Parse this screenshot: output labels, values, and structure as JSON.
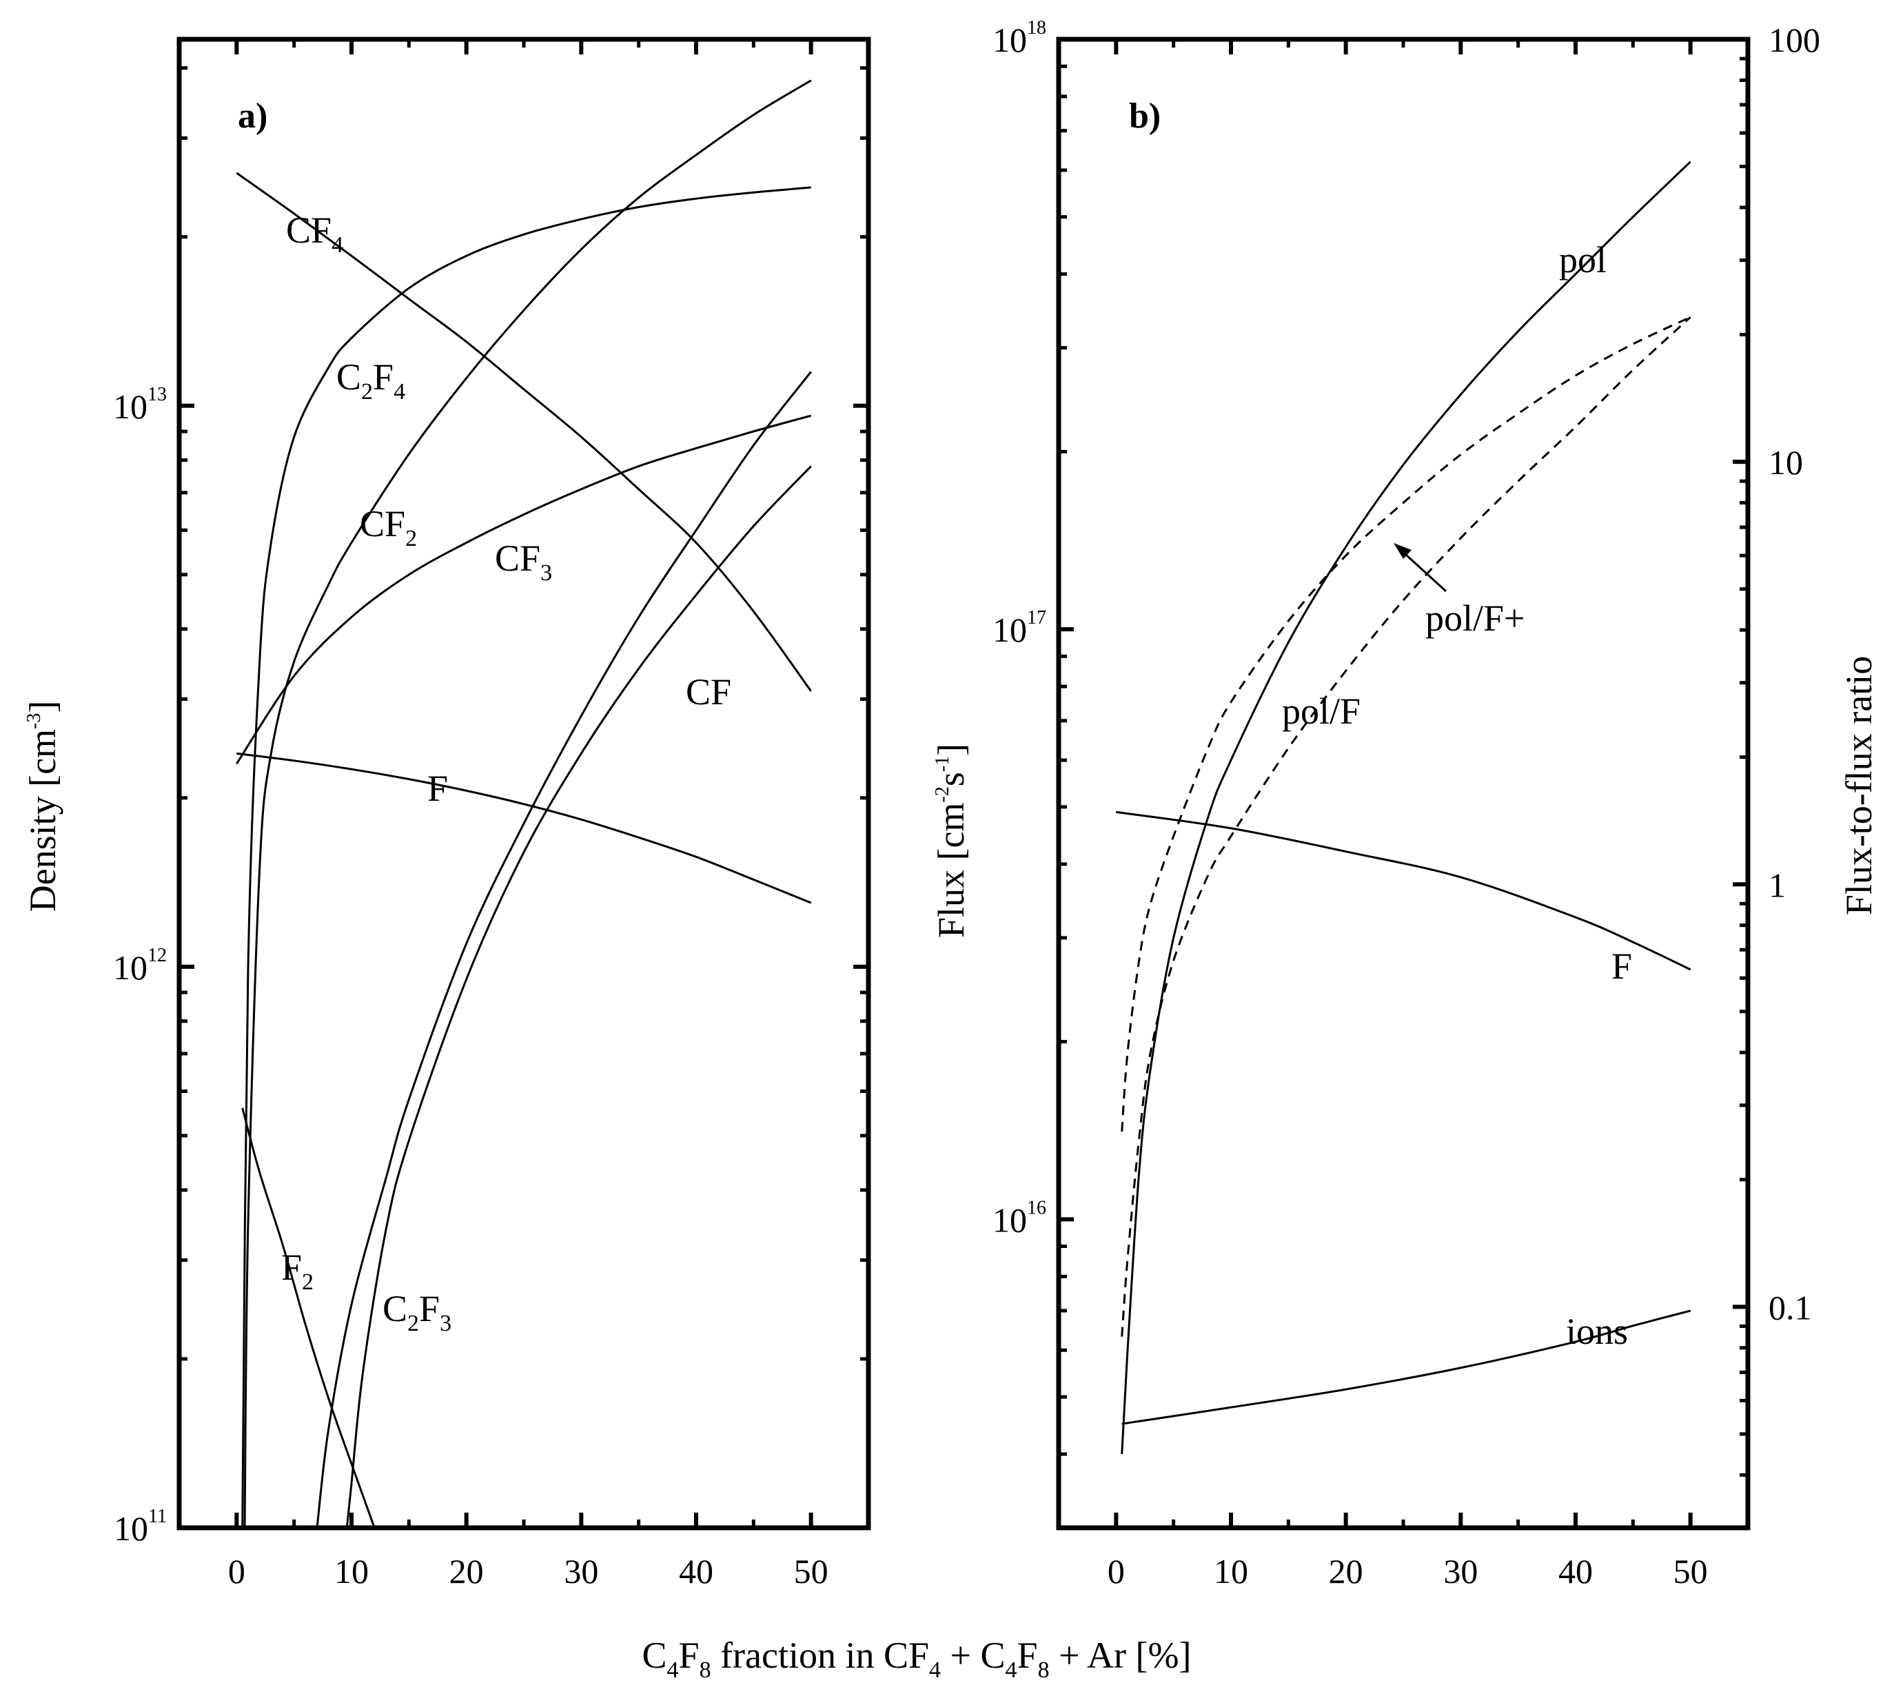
{
  "figure": {
    "xlabel": {
      "main": "C",
      "s1": "4",
      "m2": "F",
      "s2": "8",
      "m3": " fraction in CF",
      "s3": "4",
      "m4": " + C",
      "s4": "4",
      "m5": "F",
      "s5": "8",
      "m6": " + Ar [%]"
    }
  },
  "chart_data": [
    {
      "panel": "a)",
      "type": "line",
      "yscale": "log",
      "xlim": [
        -5,
        55
      ],
      "ylim": [
        100000000000.0,
        45000000000000.0
      ],
      "xticks": [
        0,
        10,
        20,
        30,
        40,
        50
      ],
      "xtick_labels": [
        "0",
        "10",
        "20",
        "30",
        "40",
        "50"
      ],
      "ytick_labels": [
        {
          "value": 100000000000.0,
          "base": "10",
          "exp": "11"
        },
        {
          "value": 1000000000000.0,
          "base": "10",
          "exp": "12"
        },
        {
          "value": 10000000000000.0,
          "base": "10",
          "exp": "13"
        }
      ],
      "ylabel": {
        "main": "Density [cm",
        "sup": "-3",
        "end": "]"
      },
      "series": [
        {
          "name": "CF4",
          "label": {
            "main": "CF",
            "sub": "4"
          },
          "x": [
            0,
            5,
            10,
            15,
            20,
            25,
            30,
            35,
            40,
            45,
            50
          ],
          "y": [
            26000000000000.0,
            22000000000000.0,
            18500000000000.0,
            15500000000000.0,
            13000000000000.0,
            10700000000000.0,
            8800000000000.0,
            7100000000000.0,
            5700000000000.0,
            4300000000000.0,
            3100000000000.0
          ]
        },
        {
          "name": "C2F4",
          "label": {
            "main": "C",
            "sub": "2",
            "main2": "F",
            "sub2": "4"
          },
          "x": [
            0.5,
            1,
            2,
            3,
            5,
            8,
            10,
            15,
            20,
            25,
            30,
            35,
            40,
            45,
            50
          ],
          "y": [
            100000000000.0,
            1000000000000.0,
            3500000000000.0,
            5700000000000.0,
            8800000000000.0,
            11700000000000.0,
            13200000000000.0,
            16200000000000.0,
            18500000000000.0,
            20200000000000.0,
            21500000000000.0,
            22600000000000.0,
            23400000000000.0,
            24000000000000.0,
            24500000000000.0
          ]
        },
        {
          "name": "CF2",
          "label": {
            "main": "CF",
            "sub": "2"
          },
          "x": [
            0.7,
            1,
            2,
            3,
            5,
            8,
            10,
            15,
            20,
            25,
            30,
            35,
            40,
            45,
            50
          ],
          "y": [
            100000000000.0,
            350000000000.0,
            1500000000000.0,
            2400000000000.0,
            3500000000000.0,
            4800000000000.0,
            5700000000000.0,
            8200000000000.0,
            11200000000000.0,
            14800000000000.0,
            19000000000000.0,
            23500000000000.0,
            28000000000000.0,
            33000000000000.0,
            38000000000000.0
          ]
        },
        {
          "name": "CF3",
          "label": {
            "main": "CF",
            "sub": "3"
          },
          "x": [
            0,
            5,
            10,
            15,
            20,
            25,
            30,
            35,
            40,
            45,
            50
          ],
          "y": [
            2300000000000.0,
            3300000000000.0,
            4200000000000.0,
            5000000000000.0,
            5700000000000.0,
            6400000000000.0,
            7100000000000.0,
            7800000000000.0,
            8400000000000.0,
            9000000000000.0,
            9600000000000.0
          ]
        },
        {
          "name": "F",
          "label": {
            "main": "F"
          },
          "x": [
            0,
            5,
            10,
            15,
            20,
            25,
            30,
            35,
            40,
            45,
            50
          ],
          "y": [
            2400000000000.0,
            2330000000000.0,
            2250000000000.0,
            2160000000000.0,
            2060000000000.0,
            1950000000000.0,
            1830000000000.0,
            1700000000000.0,
            1570000000000.0,
            1430000000000.0,
            1300000000000.0
          ]
        },
        {
          "name": "F2",
          "label": {
            "main": "F",
            "sub": "2"
          },
          "x": [
            0.5,
            2,
            4,
            6,
            8,
            10,
            12
          ],
          "y": [
            560000000000.0,
            430000000000.0,
            320000000000.0,
            230000000000.0,
            170000000000.0,
            130000000000.0,
            100000000000.0
          ]
        },
        {
          "name": "CF",
          "label": {
            "main": "CF"
          },
          "x": [
            7,
            8,
            10,
            13,
            15,
            20,
            25,
            30,
            35,
            40,
            45,
            50
          ],
          "y": [
            100000000000.0,
            150000000000.0,
            250000000000.0,
            420000000000.0,
            580000000000.0,
            1100000000000.0,
            1800000000000.0,
            2800000000000.0,
            4200000000000.0,
            6000000000000.0,
            8500000000000.0,
            11500000000000.0
          ]
        },
        {
          "name": "C2F3",
          "label": {
            "main": "C",
            "sub": "2",
            "main2": "F",
            "sub2": "3"
          },
          "x": [
            9.6,
            10,
            11,
            13,
            15,
            20,
            25,
            30,
            35,
            40,
            45,
            50
          ],
          "y": [
            100000000000.0,
            120000000000.0,
            190000000000.0,
            340000000000.0,
            490000000000.0,
            950000000000.0,
            1600000000000.0,
            2400000000000.0,
            3400000000000.0,
            4600000000000.0,
            6100000000000.0,
            7800000000000.0
          ]
        }
      ]
    },
    {
      "panel": "b)",
      "type": "line",
      "yscale": "log",
      "xlim": [
        -5,
        55
      ],
      "ylim": [
        3000000000000000.0,
        1e+18
      ],
      "xticks": [
        0,
        10,
        20,
        30,
        40,
        50
      ],
      "xtick_labels": [
        "0",
        "10",
        "20",
        "30",
        "40",
        "50"
      ],
      "ytick_labels": [
        {
          "value": 1e+16,
          "base": "10",
          "exp": "16"
        },
        {
          "value": 1e+17,
          "base": "10",
          "exp": "17"
        },
        {
          "value": 1e+18,
          "base": "10",
          "exp": "18"
        }
      ],
      "ylabel": {
        "main": "Flux [cm",
        "sup1": "-2",
        "mid": "s",
        "sup2": "-1",
        "end": "]"
      },
      "y2label": "Flux-to-flux ratio",
      "y2lim": [
        0.03,
        100
      ],
      "y2tick_labels": [
        {
          "value": 0.1,
          "label": "0.1"
        },
        {
          "value": 1,
          "label": "1"
        },
        {
          "value": 10,
          "label": "10"
        },
        {
          "value": 100,
          "label": "100"
        }
      ],
      "series": [
        {
          "name": "pol",
          "label": "pol",
          "axis": "left",
          "style": "solid",
          "x": [
            0.5,
            1,
            2,
            3,
            5,
            8,
            10,
            15,
            20,
            25,
            30,
            35,
            40,
            45,
            50
          ],
          "y": [
            4000000000000000.0,
            6000000000000000.0,
            1.2e+16,
            1.8e+16,
            3e+16,
            4.8e+16,
            6e+16,
            9.5e+16,
            1.38e+17,
            1.9e+17,
            2.5e+17,
            3.2e+17,
            4e+17,
            5e+17,
            6.2e+17
          ]
        },
        {
          "name": "F",
          "label": "F",
          "axis": "left",
          "style": "solid",
          "x": [
            0,
            10,
            20,
            30,
            40,
            45,
            50
          ],
          "y": [
            4.9e+16,
            4.6e+16,
            4.2e+16,
            3.8e+16,
            3.25e+16,
            2.95e+16,
            2.65e+16
          ]
        },
        {
          "name": "ions",
          "label": "ions",
          "axis": "left",
          "style": "solid",
          "x": [
            0.5,
            10,
            20,
            30,
            40,
            45,
            50
          ],
          "y": [
            4500000000000000.0,
            4800000000000000.0,
            5150000000000000.0,
            5600000000000000.0,
            6200000000000000.0,
            6600000000000000.0,
            7000000000000000.0
          ]
        },
        {
          "name": "pol/F",
          "label": "pol/F",
          "axis": "right",
          "style": "dashed",
          "x": [
            0.5,
            1,
            2,
            3,
            5,
            8,
            10,
            15,
            20,
            25,
            30,
            35,
            40,
            45,
            50
          ],
          "y": [
            0.085,
            0.13,
            0.25,
            0.4,
            0.66,
            1.05,
            1.3,
            2.1,
            3.2,
            4.7,
            6.6,
            9,
            12.1,
            16.5,
            22
          ]
        },
        {
          "name": "pol/F+",
          "label": "pol/F+",
          "axis": "right",
          "style": "dashed",
          "x": [
            0.5,
            1,
            2,
            3,
            5,
            8,
            10,
            15,
            20,
            25,
            30,
            35,
            40,
            45,
            50
          ],
          "y": [
            0.26,
            0.4,
            0.66,
            0.9,
            1.3,
            2.1,
            2.7,
            4.2,
            6,
            8,
            10.4,
            13,
            16,
            19,
            22
          ]
        }
      ]
    }
  ]
}
